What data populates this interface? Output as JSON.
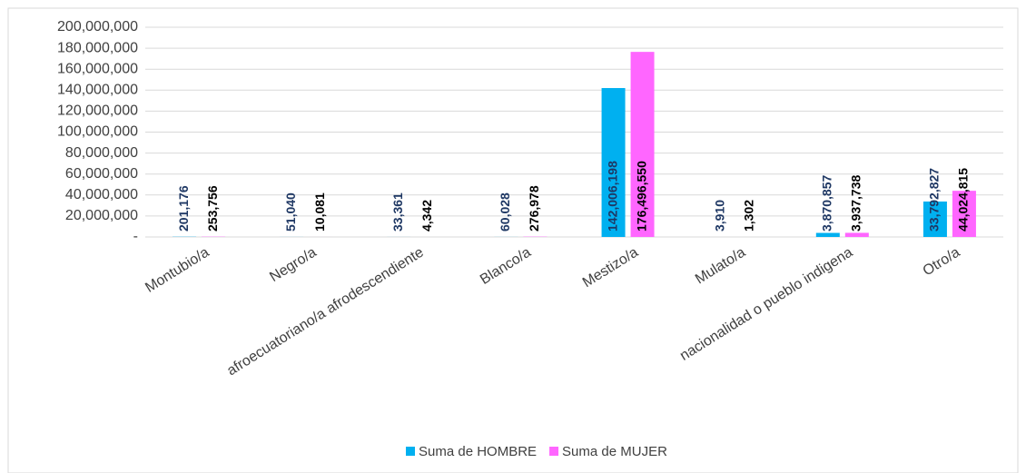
{
  "chart_data": {
    "type": "bar",
    "categories": [
      "Montubio/a",
      "Negro/a",
      "afroecuatoriano/a afrodescendiente",
      "Blanco/a",
      "Mestizo/a",
      "Mulato/a",
      "nacionalidad o pueblo indigena",
      "Otro/a"
    ],
    "series": [
      {
        "name": "Suma de HOMBRE",
        "color": "#00b0f0",
        "label_color": "#1f3864",
        "values": [
          201176,
          51040,
          33361,
          60028,
          142006198,
          3910,
          3870857,
          33792827
        ],
        "value_labels": [
          "201,176",
          "51,040",
          "33,361",
          "60,028",
          "142,006,198",
          "3,910",
          "3,870,857",
          "33,792,827"
        ]
      },
      {
        "name": "Suma de MUJER",
        "color": "#ff66ff",
        "label_color": "#000000",
        "values": [
          253756,
          10081,
          4342,
          276978,
          176496550,
          1302,
          3937738,
          44024815
        ],
        "value_labels": [
          "253,756",
          "10,081",
          "4,342",
          "276,978",
          "176,496,550",
          "1,302",
          "3,937,738",
          "44,024,815"
        ]
      }
    ],
    "ylim": [
      0,
      200000000
    ],
    "yticks": [
      {
        "value": 0,
        "label": "-"
      },
      {
        "value": 20000000,
        "label": "20,000,000"
      },
      {
        "value": 40000000,
        "label": "40,000,000"
      },
      {
        "value": 60000000,
        "label": "60,000,000"
      },
      {
        "value": 80000000,
        "label": "80,000,000"
      },
      {
        "value": 100000000,
        "label": "100,000,000"
      },
      {
        "value": 120000000,
        "label": "120,000,000"
      },
      {
        "value": 140000000,
        "label": "140,000,000"
      },
      {
        "value": 160000000,
        "label": "160,000,000"
      },
      {
        "value": 180000000,
        "label": "180,000,000"
      },
      {
        "value": 200000000,
        "label": "200,000,000"
      }
    ],
    "grid": true,
    "legend": "bottom"
  }
}
